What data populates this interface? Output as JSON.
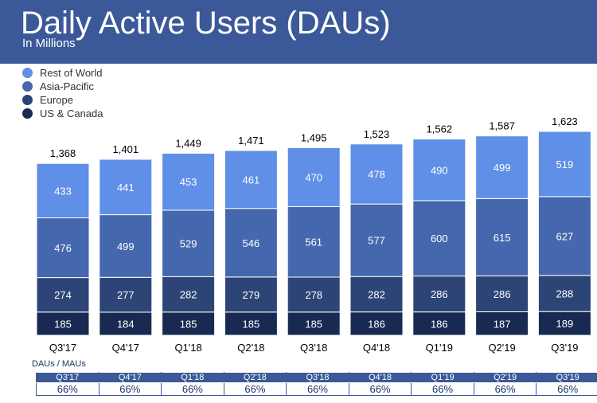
{
  "header": {
    "title": "Daily Active Users (DAUs)",
    "subtitle": "In Millions"
  },
  "chart_data": {
    "type": "bar",
    "stacked": true,
    "categories": [
      "Q3'17",
      "Q4'17",
      "Q1'18",
      "Q2'18",
      "Q3'18",
      "Q4'18",
      "Q1'19",
      "Q2'19",
      "Q3'19"
    ],
    "series": [
      {
        "name": "US & Canada",
        "color": "#192a52",
        "values": [
          185,
          184,
          185,
          185,
          185,
          186,
          186,
          187,
          189
        ]
      },
      {
        "name": "Europe",
        "color": "#2d4476",
        "values": [
          274,
          277,
          282,
          279,
          278,
          282,
          286,
          286,
          288
        ]
      },
      {
        "name": "Asia-Pacific",
        "color": "#4467ad",
        "values": [
          476,
          499,
          529,
          546,
          561,
          577,
          600,
          615,
          627
        ]
      },
      {
        "name": "Rest of World",
        "color": "#5f8fe6",
        "values": [
          433,
          441,
          453,
          461,
          470,
          478,
          490,
          499,
          519
        ]
      }
    ],
    "totals": [
      "1,368",
      "1,401",
      "1,449",
      "1,471",
      "1,495",
      "1,523",
      "1,562",
      "1,587",
      "1,623"
    ],
    "legend": [
      "Rest of World",
      "Asia-Pacific",
      "Europe",
      "US & Canada"
    ],
    "legend_colors": [
      "#5f8fe6",
      "#4467ad",
      "#2d4476",
      "#192a52"
    ],
    "ylim": [
      0,
      1623
    ],
    "grid": false,
    "legend_position": "top-left"
  },
  "ratio_table": {
    "title": "DAUs / MAUs",
    "quarters": [
      "Q3'17",
      "Q4'17",
      "Q1'18",
      "Q2'18",
      "Q3'18",
      "Q4'18",
      "Q1'19",
      "Q2'19",
      "Q3'19"
    ],
    "values": [
      "66%",
      "66%",
      "66%",
      "66%",
      "66%",
      "66%",
      "66%",
      "66%",
      "66%"
    ]
  }
}
